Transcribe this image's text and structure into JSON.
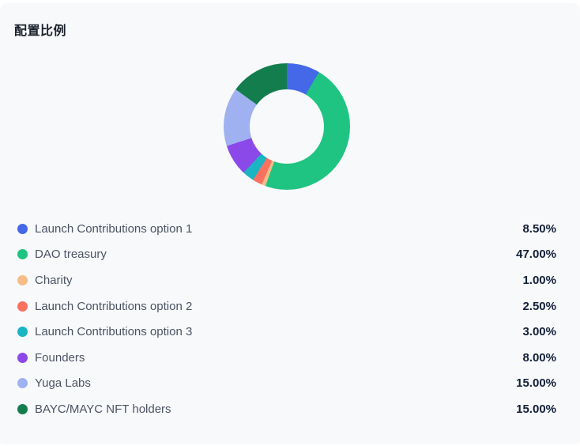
{
  "page": {
    "background": "#ffffff",
    "card_background": "#f8f9fb"
  },
  "header": {
    "title": "配置比例"
  },
  "chart_data": {
    "type": "pie",
    "variant": "donut",
    "start_angle_deg": 0,
    "direction": "clockwise",
    "legend_position": "bottom-list",
    "inner_radius_ratio": 0.59,
    "slices": [
      {
        "label": "Launch Contributions option 1",
        "value": 8.5,
        "display": "8.50%",
        "color": "#4468e8"
      },
      {
        "label": "DAO treasury",
        "value": 47.0,
        "display": "47.00%",
        "color": "#1fc482"
      },
      {
        "label": "Charity",
        "value": 1.0,
        "display": "1.00%",
        "color": "#f6bd87"
      },
      {
        "label": "Launch Contributions option 2",
        "value": 2.5,
        "display": "2.50%",
        "color": "#fa7160"
      },
      {
        "label": "Launch Contributions option 3",
        "value": 3.0,
        "display": "3.00%",
        "color": "#1ab4c3"
      },
      {
        "label": "Founders",
        "value": 8.0,
        "display": "8.00%",
        "color": "#8c49ea"
      },
      {
        "label": "Yuga Labs",
        "value": 15.0,
        "display": "15.00%",
        "color": "#9fb1f0"
      },
      {
        "label": "BAYC/MAYC NFT holders",
        "value": 15.0,
        "display": "15.00%",
        "color": "#147d4e"
      }
    ]
  }
}
